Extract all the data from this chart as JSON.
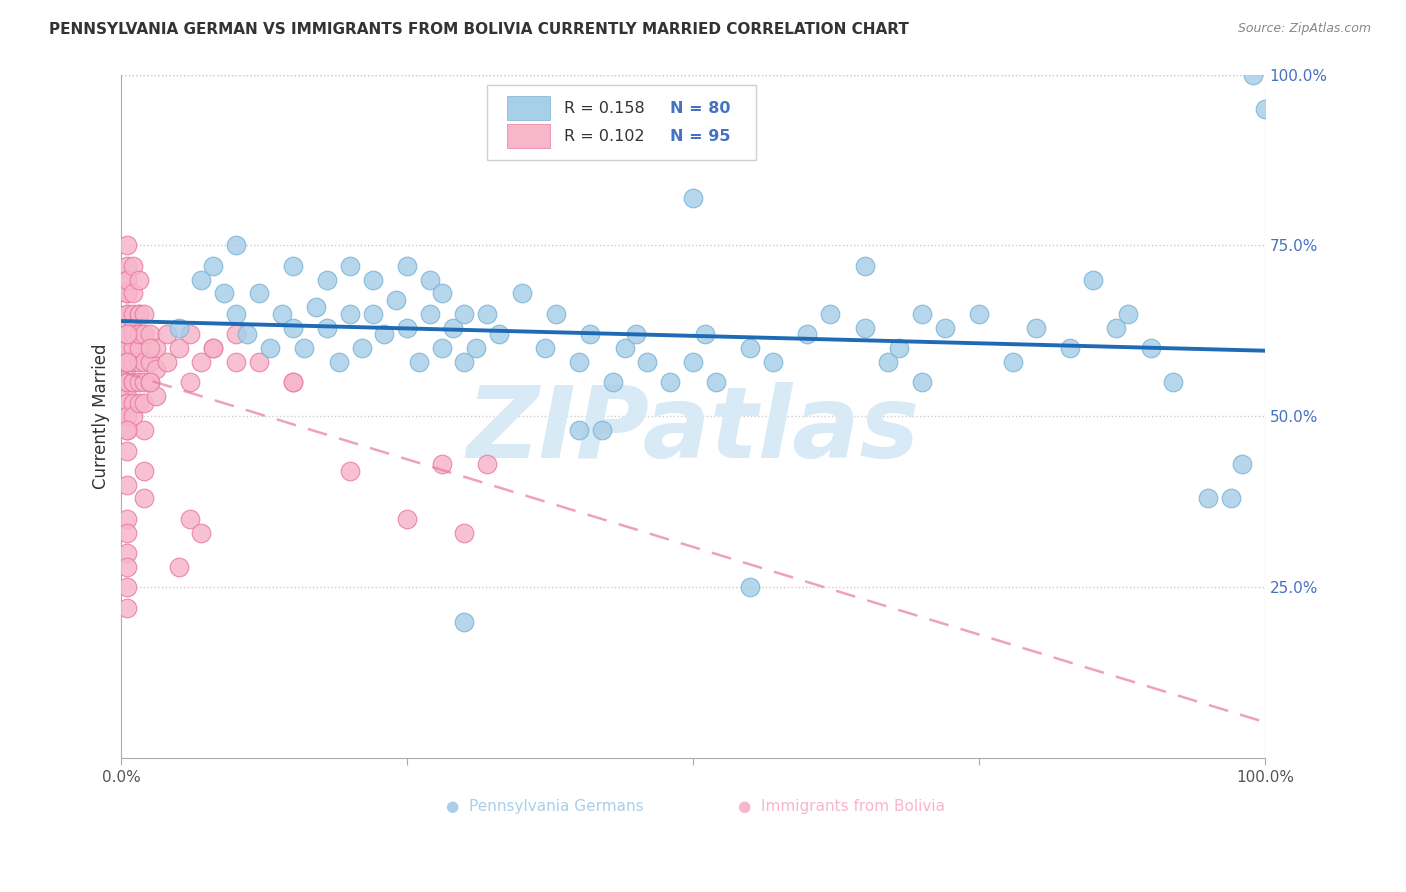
{
  "title": "PENNSYLVANIA GERMAN VS IMMIGRANTS FROM BOLIVIA CURRENTLY MARRIED CORRELATION CHART",
  "source": "Source: ZipAtlas.com",
  "ylabel": "Currently Married",
  "legend_r1": "R = 0.158",
  "legend_n1": "N = 80",
  "legend_r2": "R = 0.102",
  "legend_n2": "N = 95",
  "blue_scatter_color": "#a8cfe8",
  "blue_scatter_edge": "#7ab3d6",
  "blue_line_color": "#1f6ab4",
  "pink_scatter_color": "#f7b6ca",
  "pink_scatter_edge": "#e87aa0",
  "pink_line_color": "#e87aa0",
  "watermark": "ZIPatlas",
  "title_color": "#333333",
  "source_color": "#888888",
  "ytick_color": "#4472c4",
  "grid_color": "#cccccc",
  "legend_text_color": "#333333",
  "legend_n_color": "#4472c4",
  "bottom_legend_blue": "#a8cfe8",
  "bottom_legend_pink": "#f7b6ca",
  "blue_x": [
    0.05,
    0.07,
    0.08,
    0.09,
    0.1,
    0.1,
    0.11,
    0.12,
    0.13,
    0.14,
    0.15,
    0.15,
    0.16,
    0.17,
    0.18,
    0.18,
    0.19,
    0.2,
    0.2,
    0.21,
    0.22,
    0.22,
    0.23,
    0.24,
    0.25,
    0.25,
    0.26,
    0.27,
    0.27,
    0.28,
    0.28,
    0.29,
    0.3,
    0.3,
    0.31,
    0.32,
    0.33,
    0.35,
    0.37,
    0.38,
    0.4,
    0.41,
    0.42,
    0.43,
    0.44,
    0.45,
    0.46,
    0.48,
    0.5,
    0.51,
    0.52,
    0.55,
    0.57,
    0.6,
    0.62,
    0.65,
    0.67,
    0.68,
    0.7,
    0.72,
    0.75,
    0.78,
    0.8,
    0.83,
    0.85,
    0.87,
    0.88,
    0.9,
    0.92,
    0.95,
    0.97,
    0.98,
    0.99,
    1.0,
    0.5,
    0.65,
    0.7,
    0.4,
    0.55,
    0.3
  ],
  "blue_y": [
    0.63,
    0.7,
    0.72,
    0.68,
    0.65,
    0.75,
    0.62,
    0.68,
    0.6,
    0.65,
    0.63,
    0.72,
    0.6,
    0.66,
    0.63,
    0.7,
    0.58,
    0.65,
    0.72,
    0.6,
    0.65,
    0.7,
    0.62,
    0.67,
    0.63,
    0.72,
    0.58,
    0.65,
    0.7,
    0.6,
    0.68,
    0.63,
    0.58,
    0.65,
    0.6,
    0.65,
    0.62,
    0.68,
    0.6,
    0.65,
    0.58,
    0.62,
    0.48,
    0.55,
    0.6,
    0.62,
    0.58,
    0.55,
    0.58,
    0.62,
    0.55,
    0.6,
    0.58,
    0.62,
    0.65,
    0.63,
    0.58,
    0.6,
    0.55,
    0.63,
    0.65,
    0.58,
    0.63,
    0.6,
    0.7,
    0.63,
    0.65,
    0.6,
    0.55,
    0.38,
    0.38,
    0.43,
    1.0,
    0.95,
    0.82,
    0.72,
    0.65,
    0.48,
    0.25,
    0.2
  ],
  "pink_x": [
    0.005,
    0.005,
    0.005,
    0.005,
    0.005,
    0.005,
    0.005,
    0.005,
    0.005,
    0.005,
    0.005,
    0.005,
    0.005,
    0.005,
    0.005,
    0.005,
    0.005,
    0.005,
    0.005,
    0.005,
    0.005,
    0.005,
    0.005,
    0.005,
    0.005,
    0.01,
    0.01,
    0.01,
    0.01,
    0.01,
    0.01,
    0.01,
    0.01,
    0.01,
    0.01,
    0.01,
    0.01,
    0.01,
    0.015,
    0.015,
    0.015,
    0.015,
    0.015,
    0.015,
    0.015,
    0.015,
    0.015,
    0.02,
    0.02,
    0.02,
    0.02,
    0.02,
    0.025,
    0.025,
    0.025,
    0.03,
    0.03,
    0.03,
    0.04,
    0.04,
    0.05,
    0.06,
    0.07,
    0.08,
    0.1,
    0.12,
    0.15,
    0.02,
    0.02,
    0.02,
    0.025,
    0.025,
    0.06,
    0.08,
    0.1,
    0.15,
    0.2,
    0.25,
    0.28,
    0.3,
    0.32,
    0.05,
    0.06,
    0.07,
    0.005,
    0.005,
    0.005,
    0.005,
    0.005,
    0.005,
    0.005,
    0.005,
    0.005,
    0.005,
    0.005
  ],
  "pink_y": [
    0.75,
    0.72,
    0.7,
    0.68,
    0.65,
    0.63,
    0.6,
    0.58,
    0.55,
    0.53,
    0.6,
    0.62,
    0.58,
    0.55,
    0.52,
    0.5,
    0.48,
    0.65,
    0.68,
    0.7,
    0.62,
    0.58,
    0.55,
    0.52,
    0.5,
    0.72,
    0.68,
    0.65,
    0.62,
    0.58,
    0.55,
    0.6,
    0.63,
    0.58,
    0.55,
    0.52,
    0.5,
    0.62,
    0.7,
    0.65,
    0.62,
    0.58,
    0.55,
    0.52,
    0.6,
    0.65,
    0.62,
    0.65,
    0.62,
    0.58,
    0.55,
    0.52,
    0.62,
    0.58,
    0.55,
    0.6,
    0.57,
    0.53,
    0.62,
    0.58,
    0.6,
    0.62,
    0.58,
    0.6,
    0.62,
    0.58,
    0.55,
    0.38,
    0.42,
    0.48,
    0.55,
    0.6,
    0.55,
    0.6,
    0.58,
    0.55,
    0.42,
    0.35,
    0.43,
    0.33,
    0.43,
    0.28,
    0.35,
    0.33,
    0.45,
    0.4,
    0.35,
    0.33,
    0.3,
    0.28,
    0.25,
    0.22,
    0.58,
    0.62,
    0.48
  ]
}
